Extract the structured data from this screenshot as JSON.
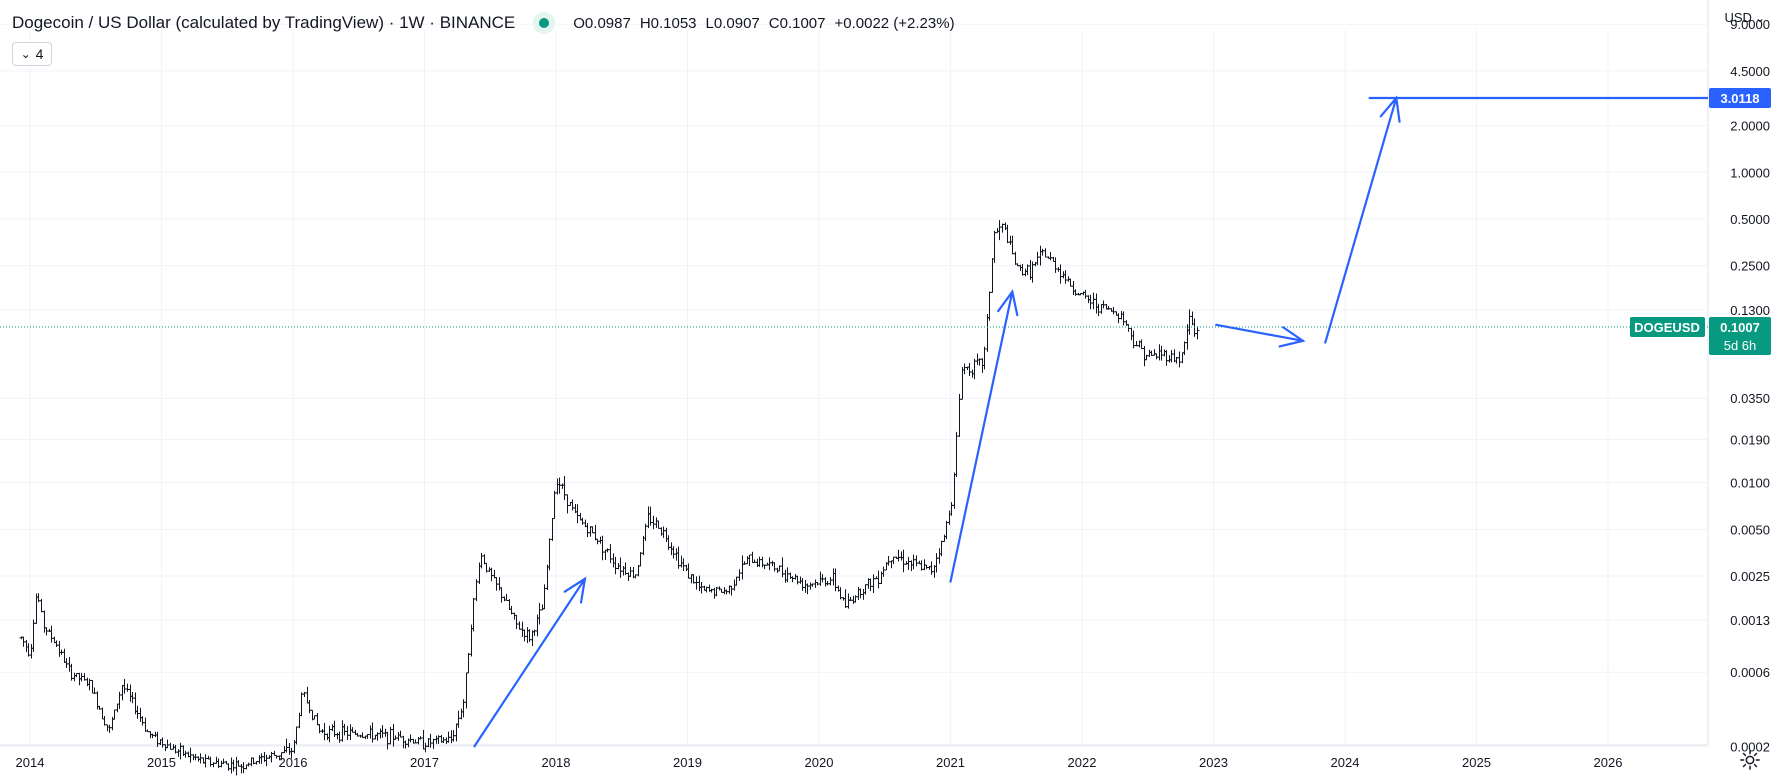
{
  "header": {
    "title": "Dogecoin / US Dollar (calculated by TradingView) · 1W · BINANCE",
    "ohlc": {
      "open": "O0.0987",
      "high": "H0.1053",
      "low": "L0.0907",
      "close": "C0.1007",
      "change": "+0.0022 (+2.23%)"
    },
    "indicator_count": "4",
    "currency": "USD"
  },
  "colors": {
    "accent_blue": "#2962ff",
    "price_green": "#089981",
    "candle": "#131722",
    "grid": "#f0f3fa"
  },
  "chart_data": {
    "type": "bar",
    "symbol": "DOGEUSD",
    "interval": "1W",
    "scale": "log",
    "grid": true,
    "last_price": 0.1007,
    "last_price_label": "0.1007",
    "countdown": "5d 6h",
    "target_label": "3.0118",
    "target_value": 3.0118,
    "y_ticks": [
      9.0,
      4.5,
      2.0,
      1.0,
      0.5,
      0.25,
      0.13,
      0.035,
      0.019,
      0.01,
      0.005,
      0.0025,
      0.0013,
      0.0006,
      0.0002
    ],
    "y_tick_labels": [
      "9.0000",
      "4.5000",
      "2.0000",
      "1.0000",
      "0.5000",
      "0.2500",
      "0.1300",
      "0.0350",
      "0.0190",
      "0.0100",
      "0.0050",
      "0.0025",
      "0.0013",
      "0.0006",
      "0.0002"
    ],
    "x_ticks": [
      2014,
      2015,
      2016,
      2017,
      2018,
      2019,
      2020,
      2021,
      2022,
      2023,
      2024,
      2025,
      2026
    ],
    "x_tick_labels": [
      "2014",
      "2015",
      "2016",
      "2017",
      "2018",
      "2019",
      "2020",
      "2021",
      "2022",
      "2023",
      "2024",
      "2025",
      "2026"
    ],
    "price_path": [
      [
        2013.93,
        0.001
      ],
      [
        2014.0,
        0.0008
      ],
      [
        2014.05,
        0.002
      ],
      [
        2014.1,
        0.0012
      ],
      [
        2014.2,
        0.0009
      ],
      [
        2014.3,
        0.0006
      ],
      [
        2014.45,
        0.0005
      ],
      [
        2014.6,
        0.00025
      ],
      [
        2014.7,
        0.0005
      ],
      [
        2014.8,
        0.00035
      ],
      [
        2014.9,
        0.00024
      ],
      [
        2015.1,
        0.00019
      ],
      [
        2015.3,
        0.00016
      ],
      [
        2015.6,
        0.00015
      ],
      [
        2015.8,
        0.00017
      ],
      [
        2016.0,
        0.00019
      ],
      [
        2016.07,
        0.00045
      ],
      [
        2016.2,
        0.00025
      ],
      [
        2016.5,
        0.00024
      ],
      [
        2016.8,
        0.00023
      ],
      [
        2017.0,
        0.00021
      ],
      [
        2017.2,
        0.00022
      ],
      [
        2017.3,
        0.0004
      ],
      [
        2017.35,
        0.0012
      ],
      [
        2017.42,
        0.0035
      ],
      [
        2017.5,
        0.0025
      ],
      [
        2017.6,
        0.0018
      ],
      [
        2017.7,
        0.0012
      ],
      [
        2017.8,
        0.001
      ],
      [
        2017.9,
        0.0016
      ],
      [
        2018.0,
        0.011
      ],
      [
        2018.05,
        0.009
      ],
      [
        2018.15,
        0.006
      ],
      [
        2018.3,
        0.0045
      ],
      [
        2018.45,
        0.003
      ],
      [
        2018.6,
        0.0025
      ],
      [
        2018.7,
        0.006
      ],
      [
        2018.8,
        0.005
      ],
      [
        2018.95,
        0.003
      ],
      [
        2019.1,
        0.002
      ],
      [
        2019.3,
        0.002
      ],
      [
        2019.45,
        0.0032
      ],
      [
        2019.6,
        0.003
      ],
      [
        2019.75,
        0.0026
      ],
      [
        2019.9,
        0.0022
      ],
      [
        2020.1,
        0.0024
      ],
      [
        2020.2,
        0.0016
      ],
      [
        2020.3,
        0.002
      ],
      [
        2020.45,
        0.0025
      ],
      [
        2020.55,
        0.0035
      ],
      [
        2020.7,
        0.003
      ],
      [
        2020.85,
        0.0027
      ],
      [
        2020.95,
        0.0045
      ],
      [
        2021.02,
        0.009
      ],
      [
        2021.08,
        0.055
      ],
      [
        2021.15,
        0.055
      ],
      [
        2021.25,
        0.06
      ],
      [
        2021.33,
        0.4
      ],
      [
        2021.4,
        0.45
      ],
      [
        2021.5,
        0.24
      ],
      [
        2021.6,
        0.23
      ],
      [
        2021.7,
        0.3
      ],
      [
        2021.8,
        0.25
      ],
      [
        2021.95,
        0.17
      ],
      [
        2022.1,
        0.14
      ],
      [
        2022.2,
        0.13
      ],
      [
        2022.3,
        0.12
      ],
      [
        2022.4,
        0.08
      ],
      [
        2022.5,
        0.065
      ],
      [
        2022.6,
        0.068
      ],
      [
        2022.75,
        0.062
      ],
      [
        2022.82,
        0.12
      ],
      [
        2022.85,
        0.09
      ],
      [
        2022.88,
        0.1007
      ]
    ]
  }
}
